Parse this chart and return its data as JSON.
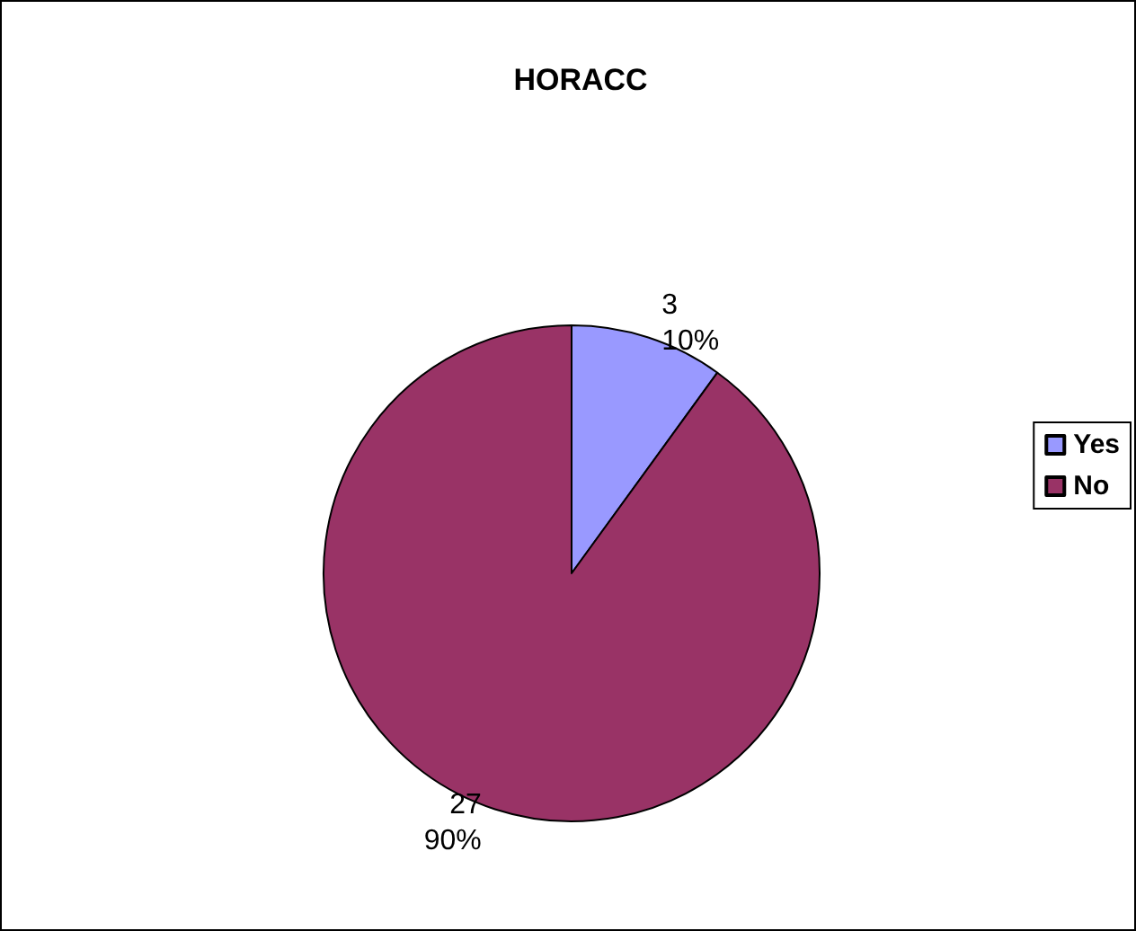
{
  "chart_data": {
    "type": "pie",
    "title": "HORACC",
    "categories": [
      "Yes",
      "No"
    ],
    "values": [
      3,
      27
    ],
    "colors": [
      "#9999ff",
      "#993366"
    ],
    "value_labels": [
      "3\n10%",
      "27\n90%"
    ],
    "legend": "right"
  }
}
